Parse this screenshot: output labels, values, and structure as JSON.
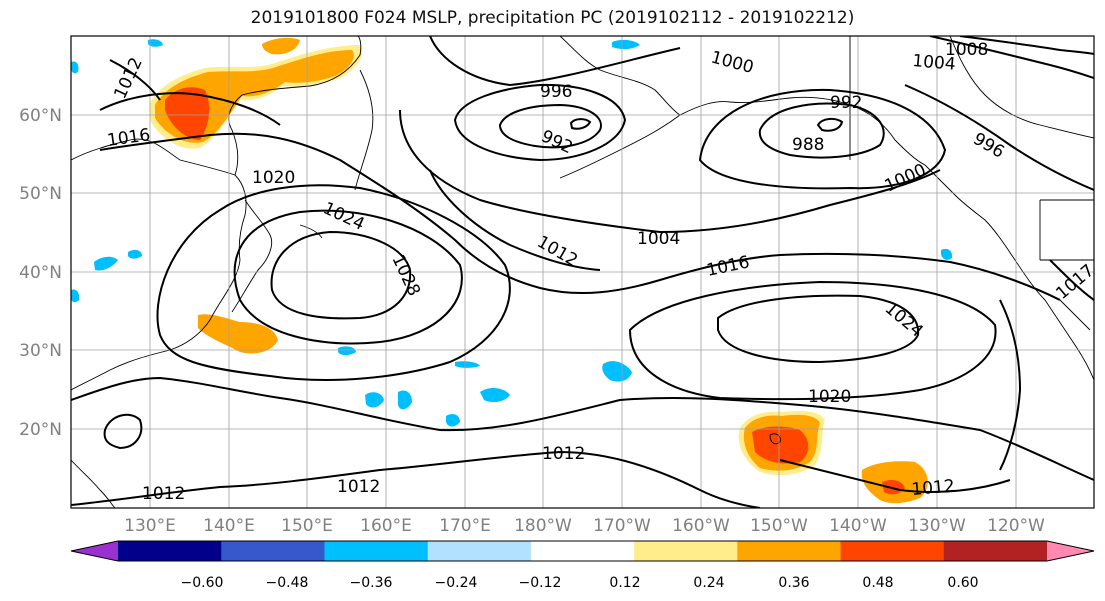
{
  "title": "2019101800 F024 MSLP, precipitation PC (2019102112 - 2019102212)",
  "map": {
    "projection": "plate-carree",
    "lon_range": [
      120,
      250
    ],
    "lat_range": [
      10,
      70
    ],
    "grid": true,
    "lat_labels": [
      "20°N",
      "30°N",
      "40°N",
      "50°N",
      "60°N"
    ],
    "lon_labels": [
      "130°E",
      "140°E",
      "150°E",
      "160°E",
      "170°E",
      "180°W",
      "170°W",
      "160°W",
      "150°W",
      "140°W",
      "130°W",
      "120°W"
    ],
    "label_color": "#808080",
    "contour_color": "#000000",
    "isobar_labels": [
      "1000",
      "1008",
      "1004",
      "1012",
      "996",
      "992",
      "992",
      "988",
      "996",
      "1016",
      "1020",
      "1000",
      "1024",
      "1004",
      "1012",
      "1028",
      "1016",
      "1024",
      "1017",
      "1020",
      "1012",
      "1012",
      "1012",
      "1012"
    ]
  },
  "colorbar": {
    "ticks": [
      "−0.60",
      "−0.48",
      "−0.36",
      "−0.24",
      "−0.12",
      "0.12",
      "0.24",
      "0.36",
      "0.48",
      "0.60"
    ],
    "colors": [
      "#9b30d0",
      "#00008b",
      "#3558cc",
      "#00bfff",
      "#b0e2ff",
      "#ffffff",
      "#ffec8b",
      "#ffa500",
      "#ff4500",
      "#b22222",
      "#ff89b0"
    ],
    "extend": "both"
  }
}
